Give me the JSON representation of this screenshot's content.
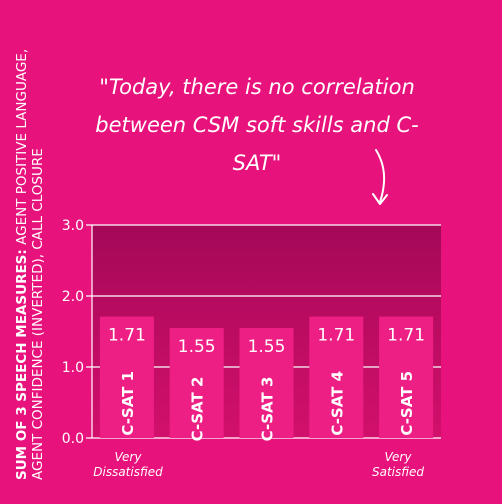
{
  "chart_data": {
    "type": "bar",
    "categories": [
      "C-SAT 1",
      "C-SAT 2",
      "C-SAT 3",
      "C-SAT 4",
      "C-SAT 5"
    ],
    "values": [
      1.71,
      1.55,
      1.55,
      1.71,
      1.71
    ],
    "ylim": [
      0,
      3
    ],
    "yticks": [
      "0.0",
      "1.0",
      "2.0",
      "3.0"
    ],
    "ylabel_bold": "SUM OF 3 SPEECH MEASURES:",
    "ylabel_rest": " AGENT POSITIVE LANGUAGE, AGENT CONFIDENCE (INVERTED), CALL CLOSURE",
    "quote": "\"Today, there is no correlation between CSM soft skills and C-SAT\"",
    "x_end_left": "Very Dissatisfied",
    "x_end_right": "Very Satisfied",
    "grid": true,
    "colors": {
      "background": "#e8127c",
      "plot_top": "#a50858",
      "plot_bottom": "#d2106c",
      "bar": "#ee1f84",
      "text": "#ffffff"
    }
  }
}
